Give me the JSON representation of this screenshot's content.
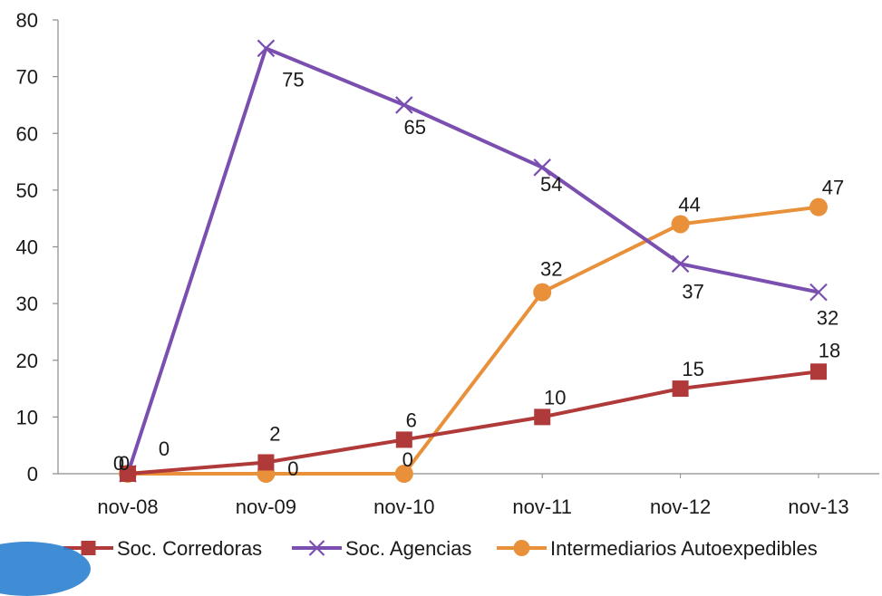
{
  "chart_data": {
    "type": "line",
    "title": "",
    "xlabel": "",
    "ylabel": "",
    "categories": [
      "nov-08",
      "nov-09",
      "nov-10",
      "nov-11",
      "nov-12",
      "nov-13"
    ],
    "ylim": [
      0,
      80
    ],
    "yticks": [
      0,
      10,
      20,
      30,
      40,
      50,
      60,
      70,
      80
    ],
    "grid": false,
    "legend": "bottom",
    "series": [
      {
        "name": "Soc. Corredoras",
        "values": [
          0,
          2,
          6,
          10,
          15,
          18
        ],
        "color": "#b03a3a",
        "marker": "square"
      },
      {
        "name": "Soc. Agencias",
        "values": [
          0,
          75,
          65,
          54,
          37,
          32
        ],
        "color": "#7b4fb0",
        "marker": "x"
      },
      {
        "name": "Intermediarios Autoexpedibles",
        "values": [
          0,
          0,
          0,
          32,
          44,
          47
        ],
        "color": "#e8913a",
        "marker": "circle"
      }
    ]
  }
}
